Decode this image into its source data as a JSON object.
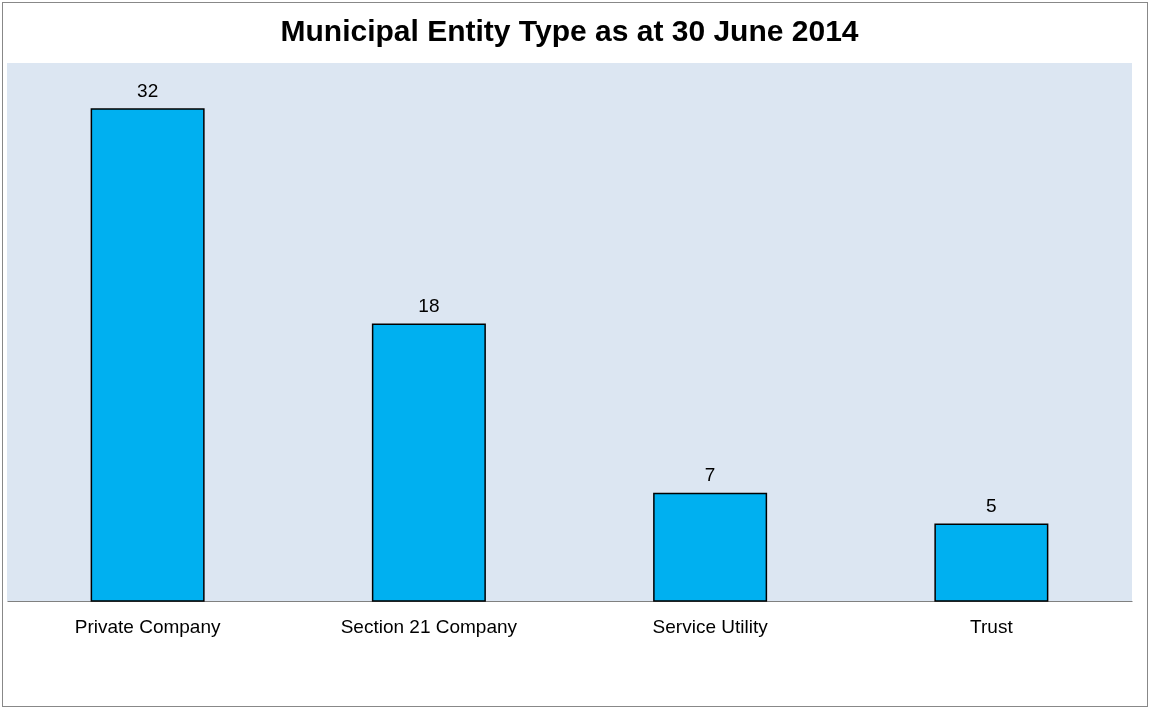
{
  "chart_data": {
    "type": "bar",
    "title": "Municipal Entity Type as at 30 June 2014",
    "categories": [
      "Private Company",
      "Section 21 Company",
      "Service Utility",
      "Trust"
    ],
    "values": [
      32,
      18,
      7,
      5
    ],
    "color": "#00b0f0",
    "data_labels": true
  }
}
